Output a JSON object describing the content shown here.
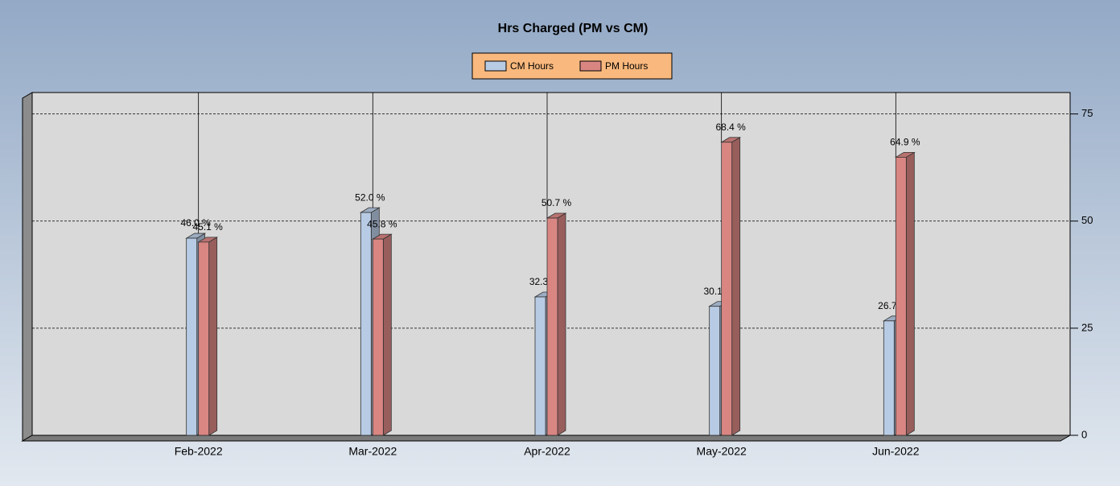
{
  "chart_data": {
    "type": "bar",
    "title": "Hrs Charged (PM vs CM)",
    "categories": [
      "Feb-2022",
      "Mar-2022",
      "Apr-2022",
      "May-2022",
      "Jun-2022"
    ],
    "series": [
      {
        "name": "CM Hours",
        "color": "#b8cbe4",
        "values": [
          46.0,
          52.0,
          32.3,
          30.1,
          26.7
        ],
        "value_labels": [
          "46.0 %",
          "52.0 %",
          "32.3 %",
          "30.1 %",
          "26.7 %"
        ]
      },
      {
        "name": "PM Hours",
        "color": "#d98683",
        "values": [
          45.1,
          45.8,
          50.7,
          68.4,
          64.9
        ],
        "value_labels": [
          "45.1 %",
          "45.8 %",
          "50.7 %",
          "68.4 %",
          "64.9 %"
        ]
      }
    ],
    "ylim": [
      0,
      80
    ],
    "yticks": [
      0,
      25,
      50,
      75
    ],
    "grid": true,
    "legend": "top"
  }
}
